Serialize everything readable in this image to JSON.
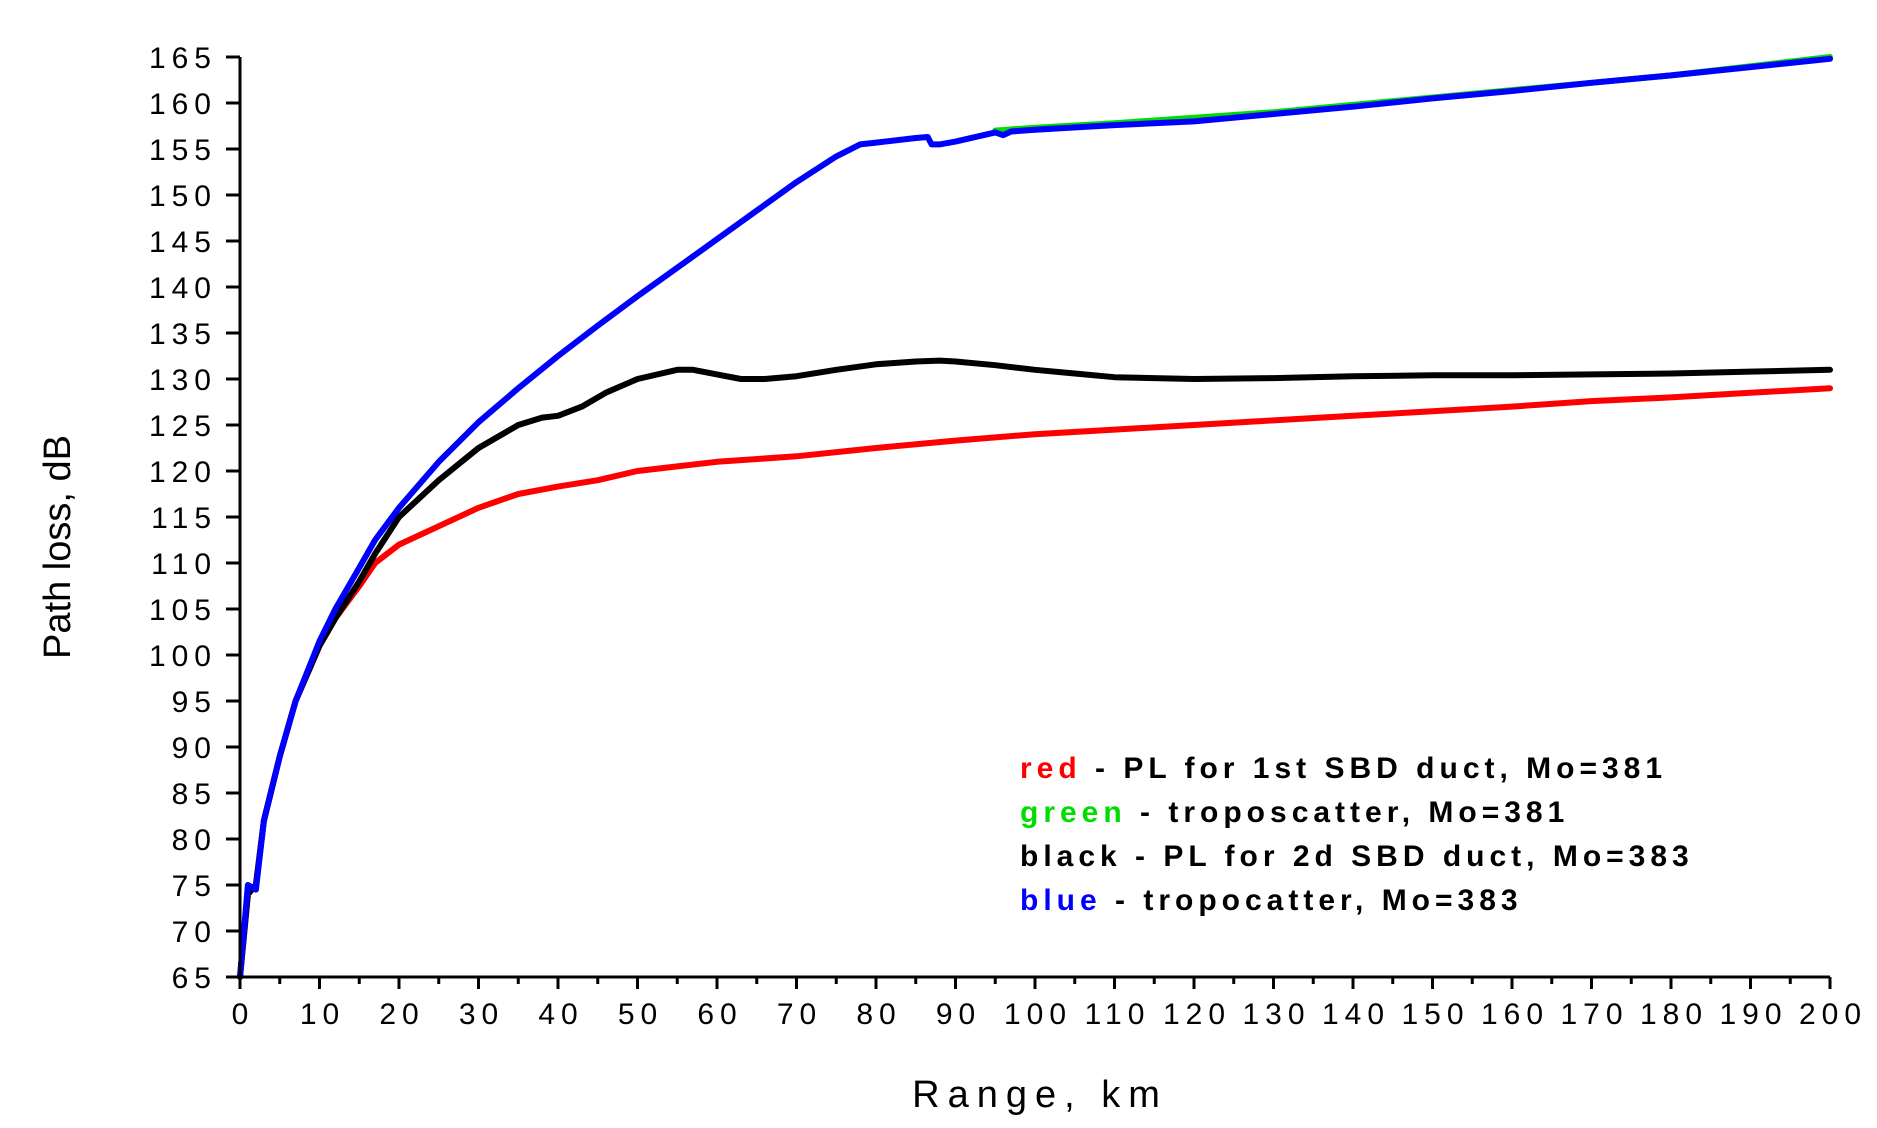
{
  "chart_data": {
    "type": "line",
    "xlabel": "Range, km",
    "ylabel": "Path loss, dB",
    "xlim": [
      0,
      200
    ],
    "ylim": [
      65,
      165
    ],
    "xticks": [
      "0",
      "10",
      "20",
      "30",
      "40",
      "50",
      "60",
      "70",
      "80",
      "90",
      "100",
      "110",
      "120",
      "130",
      "140",
      "150",
      "160",
      "170",
      "180",
      "190",
      "200"
    ],
    "yticks": [
      "65",
      "70",
      "75",
      "80",
      "85",
      "90",
      "95",
      "100",
      "105",
      "110",
      "115",
      "120",
      "125",
      "130",
      "135",
      "140",
      "145",
      "150",
      "155",
      "160",
      "165"
    ],
    "grid": false,
    "legend_position": "bottom-right",
    "legend": [
      {
        "key": "red",
        "color": "#ff0000",
        "rest": " - PL for 1st SBD duct, Mo=381"
      },
      {
        "key": "green",
        "color": "#00dd00",
        "rest": " - troposcatter, Mo=381"
      },
      {
        "key": "black",
        "color": "#000000",
        "rest": " - PL for 2d SBD duct, Mo=383"
      },
      {
        "key": "blue",
        "color": "#0000ff",
        "rest": " - tropocatter, Mo=383"
      }
    ],
    "series": [
      {
        "color": "#ff0000",
        "x": [
          0,
          1,
          2,
          3,
          5,
          7,
          10,
          12,
          15,
          17,
          20,
          25,
          30,
          35,
          40,
          45,
          50,
          55,
          60,
          70,
          80,
          90,
          100,
          110,
          120,
          130,
          140,
          150,
          160,
          170,
          180,
          190,
          200
        ],
        "y": [
          65,
          74,
          75,
          82,
          89,
          95,
          101,
          104,
          107.5,
          110,
          112,
          114,
          116,
          117.5,
          118.3,
          119,
          120,
          120.5,
          121,
          121.6,
          122.5,
          123.3,
          124,
          124.5,
          125,
          125.5,
          126,
          126.5,
          127,
          127.6,
          128,
          128.5,
          129
        ]
      },
      {
        "color": "#00dd00",
        "x": [
          95,
          100,
          110,
          120,
          130,
          140,
          150,
          160,
          170,
          180,
          190,
          200
        ],
        "y": [
          157,
          157.3,
          157.8,
          158.4,
          159,
          159.8,
          160.6,
          161.4,
          162.2,
          163,
          164,
          165
        ]
      },
      {
        "color": "#000000",
        "x": [
          0,
          1,
          2,
          3,
          5,
          7,
          10,
          12,
          15,
          17,
          20,
          25,
          30,
          35,
          38,
          40,
          43,
          46,
          50,
          55,
          57,
          60,
          63,
          66,
          70,
          75,
          80,
          85,
          88,
          90,
          95,
          100,
          105,
          110,
          120,
          130,
          140,
          150,
          160,
          170,
          180,
          190,
          200
        ],
        "y": [
          65,
          74,
          75,
          82,
          89,
          95,
          101,
          104,
          108,
          111,
          115,
          119,
          122.5,
          125,
          125.8,
          126,
          127,
          128.5,
          130,
          131,
          131,
          130.5,
          130,
          130,
          130.3,
          131,
          131.6,
          131.9,
          132,
          131.9,
          131.5,
          131,
          130.6,
          130.2,
          130,
          130.1,
          130.3,
          130.4,
          130.4,
          130.5,
          130.6,
          130.8,
          131
        ]
      },
      {
        "color": "#0000ff",
        "x": [
          0,
          1,
          2,
          3,
          5,
          7,
          10,
          12,
          15,
          17,
          20,
          25,
          30,
          35,
          40,
          45,
          50,
          55,
          60,
          65,
          70,
          75,
          78,
          80,
          85,
          86.5,
          87,
          88,
          90,
          95,
          96,
          97,
          100,
          110,
          120,
          130,
          140,
          150,
          160,
          170,
          180,
          190,
          200
        ],
        "y": [
          65,
          75,
          74.5,
          82,
          89,
          95,
          101.5,
          105,
          109.5,
          112.5,
          116,
          121,
          125.3,
          129,
          132.5,
          135.8,
          139,
          142.1,
          145.2,
          148.3,
          151.4,
          154.2,
          155.5,
          155.7,
          156.2,
          156.3,
          155.5,
          155.5,
          155.8,
          156.8,
          156.5,
          156.9,
          157.1,
          157.6,
          158,
          158.8,
          159.6,
          160.5,
          161.3,
          162.2,
          163,
          163.9,
          164.8
        ]
      }
    ]
  }
}
